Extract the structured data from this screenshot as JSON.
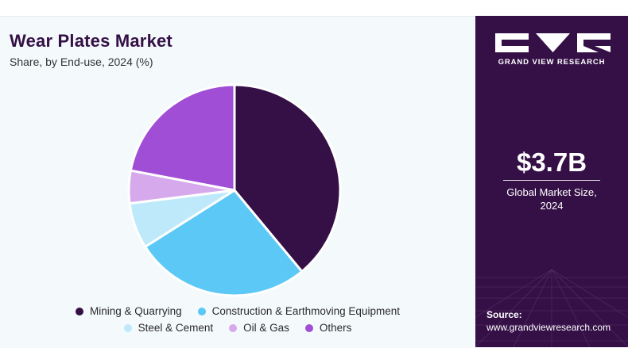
{
  "header": {
    "title": "Wear Plates Market",
    "subtitle": "Share, by End-use, 2024 (%)"
  },
  "chart_data": {
    "type": "pie",
    "title": "Wear Plates Market",
    "subtitle": "Share, by End-use, 2024 (%)",
    "categories": [
      "Mining & Quarrying",
      "Construction & Earthmoving Equipment",
      "Steel & Cement",
      "Oil & Gas",
      "Others"
    ],
    "values": [
      39,
      27,
      7,
      5,
      22
    ],
    "colors": [
      "#351046",
      "#5bc8f5",
      "#bde9fa",
      "#d6a9ec",
      "#a04ed6"
    ],
    "legend_position": "bottom",
    "start_angle": "12 o'clock",
    "direction": "clockwise"
  },
  "legend": {
    "items": [
      {
        "label": "Mining & Quarrying",
        "color": "#351046"
      },
      {
        "label": "Construction & Earthmoving Equipment",
        "color": "#5bc8f5"
      },
      {
        "label": "Steel & Cement",
        "color": "#bde9fa"
      },
      {
        "label": "Oil & Gas",
        "color": "#d6a9ec"
      },
      {
        "label": "Others",
        "color": "#a04ed6"
      }
    ]
  },
  "sidebar": {
    "brand": "GRAND VIEW RESEARCH",
    "market_value": "$3.7B",
    "market_caption_line1": "Global Market Size,",
    "market_caption_line2": "2024",
    "source_label": "Source:",
    "source_url": "www.grandviewresearch.com",
    "background_color": "#351046"
  }
}
